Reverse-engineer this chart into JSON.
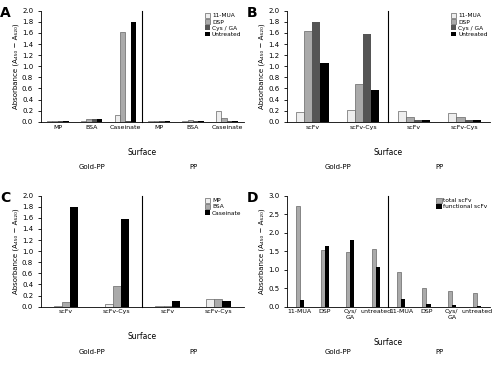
{
  "panel_A": {
    "title": "A",
    "groups": [
      "MP",
      "BSA",
      "Caseinate",
      "MP",
      "BSA",
      "Caseinate"
    ],
    "surface_labels": [
      "Gold-PP",
      "PP"
    ],
    "sep_idx": 2,
    "series": {
      "11-MUA": [
        0.02,
        0.02,
        0.13,
        0.02,
        0.02,
        0.2
      ],
      "DSP": [
        0.02,
        0.05,
        1.62,
        0.02,
        0.04,
        0.06
      ],
      "Cys / GA": [
        0.02,
        0.05,
        0.02,
        0.02,
        0.02,
        0.02
      ],
      "Untreated": [
        0.02,
        0.05,
        1.8,
        0.02,
        0.02,
        0.02
      ]
    },
    "ylim": [
      0,
      2.0
    ],
    "yticks": [
      0.0,
      0.2,
      0.4,
      0.6,
      0.8,
      1.0,
      1.2,
      1.4,
      1.6,
      1.8,
      2.0
    ],
    "legend_labels": [
      "11-MUA",
      "DSP",
      "Cys / GA",
      "Untreated"
    ],
    "colors": [
      "#eeeeee",
      "#aaaaaa",
      "#555555",
      "#000000"
    ]
  },
  "panel_B": {
    "title": "B",
    "groups": [
      "scFv",
      "scFv-Cys",
      "scFv",
      "scFv-Cys"
    ],
    "surface_labels": [
      "Gold-PP",
      "PP"
    ],
    "sep_idx": 1,
    "series": {
      "11-MUA": [
        0.17,
        0.22,
        0.2,
        0.16
      ],
      "DSP": [
        1.63,
        0.68,
        0.08,
        0.08
      ],
      "Cys / GA": [
        1.8,
        1.58,
        0.04,
        0.04
      ],
      "Untreated": [
        1.06,
        0.57,
        0.03,
        0.03
      ]
    },
    "ylim": [
      0,
      2.0
    ],
    "yticks": [
      0.0,
      0.2,
      0.4,
      0.6,
      0.8,
      1.0,
      1.2,
      1.4,
      1.6,
      1.8,
      2.0
    ],
    "legend_labels": [
      "11-MUA",
      "DSP",
      "Cys / GA",
      "Untreated"
    ],
    "colors": [
      "#eeeeee",
      "#aaaaaa",
      "#555555",
      "#000000"
    ]
  },
  "panel_C": {
    "title": "C",
    "groups": [
      "scFv",
      "scFv-Cys",
      "scFv",
      "scFv-Cys"
    ],
    "surface_labels": [
      "Gold-PP",
      "PP"
    ],
    "sep_idx": 1,
    "series": {
      "MP": [
        0.02,
        0.05,
        0.02,
        0.13
      ],
      "BSA": [
        0.08,
        0.37,
        0.02,
        0.13
      ],
      "Caseinate": [
        1.8,
        1.57,
        0.1,
        0.1
      ]
    },
    "ylim": [
      0,
      2.0
    ],
    "yticks": [
      0.0,
      0.2,
      0.4,
      0.6,
      0.8,
      1.0,
      1.2,
      1.4,
      1.6,
      1.8,
      2.0
    ],
    "legend_labels": [
      "MP",
      "BSA",
      "Caseinate"
    ],
    "colors": [
      "#eeeeee",
      "#aaaaaa",
      "#000000"
    ]
  },
  "panel_D": {
    "title": "D",
    "groups": [
      "11-MUA",
      "DSP",
      "Cys/\nGA",
      "untreated",
      "11-MUA",
      "DSP",
      "Cys/\nGA",
      "untreated"
    ],
    "surface_labels": [
      "Gold-PP",
      "PP"
    ],
    "sep_idx": 3,
    "series": {
      "total scFv": [
        2.72,
        1.52,
        1.48,
        1.55,
        0.93,
        0.5,
        0.42,
        0.38
      ],
      "functional scFv": [
        0.17,
        1.63,
        1.8,
        1.06,
        0.2,
        0.08,
        0.04,
        0.03
      ]
    },
    "ylim": [
      0,
      3.0
    ],
    "yticks": [
      0.0,
      0.5,
      1.0,
      1.5,
      2.0,
      2.5,
      3.0
    ],
    "legend_labels": [
      "total scFv",
      "functional scFv"
    ],
    "colors": [
      "#aaaaaa",
      "#000000"
    ]
  },
  "xlabel": "Surface",
  "background_color": "#ffffff"
}
